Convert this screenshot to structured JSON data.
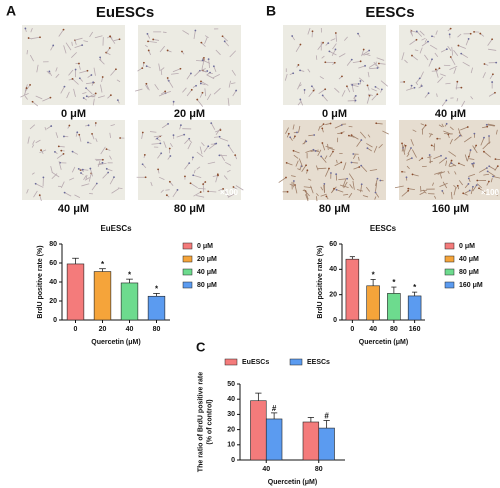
{
  "panels": [
    {
      "label": "A",
      "title": "EuESCs",
      "images": [
        "0 μM",
        "20 μM",
        "40 μM",
        "80 μM"
      ],
      "magnification": "×100"
    },
    {
      "label": "B",
      "title": "EESCs",
      "images": [
        "0 μM",
        "40 μM",
        "80 μM",
        "160 μM"
      ],
      "magnification": "×100"
    }
  ],
  "chart_data": [
    {
      "type": "bar",
      "title": "EuESCs",
      "categories": [
        "0",
        "20",
        "40",
        "80"
      ],
      "values": [
        59,
        51,
        39,
        25
      ],
      "errors": [
        6,
        3,
        4,
        3
      ],
      "markers": [
        null,
        "*",
        "*",
        "*"
      ],
      "colors": [
        "#f47b7b",
        "#f5a43a",
        "#6ddb8e",
        "#5b9bf0"
      ],
      "legend": [
        "0 μM",
        "20 μM",
        "40 μM",
        "80 μM"
      ],
      "ylabel": [
        "BrdU positive rate (%)"
      ],
      "xlabel": "Quercetin (μM)",
      "ylim": [
        0,
        80
      ],
      "yticks": [
        0,
        20,
        40,
        60,
        80
      ]
    },
    {
      "type": "bar",
      "title": "EESCs",
      "categories": [
        "0",
        "40",
        "80",
        "160"
      ],
      "values": [
        48,
        27,
        21,
        19
      ],
      "errors": [
        2,
        5,
        5,
        3
      ],
      "markers": [
        null,
        "*",
        "*",
        "*"
      ],
      "colors": [
        "#f47b7b",
        "#f5a43a",
        "#6ddb8e",
        "#5b9bf0"
      ],
      "legend": [
        "0 μM",
        "40 μM",
        "80 μM",
        "160 μM"
      ],
      "ylabel": [
        "BrdU positive rate (%)"
      ],
      "xlabel": "Quercetin (μM)",
      "ylim": [
        0,
        60
      ],
      "yticks": [
        0,
        20,
        40,
        60
      ]
    },
    {
      "type": "grouped-bar",
      "label": "C",
      "categories": [
        "40",
        "80"
      ],
      "series": [
        {
          "name": "EuESCs",
          "color": "#f47b7b",
          "values": [
            39,
            25
          ],
          "errors": [
            5,
            3
          ],
          "markers": [
            null,
            null
          ]
        },
        {
          "name": "EESCs",
          "color": "#5b9bf0",
          "values": [
            27,
            21
          ],
          "errors": [
            4,
            5
          ],
          "markers": [
            "#",
            "#"
          ]
        }
      ],
      "ylabel": [
        "The ratio of BrdU positive rate",
        "(% of control)"
      ],
      "xlabel": "Quercetin (μM)",
      "ylim": [
        0,
        50
      ],
      "yticks": [
        0,
        10,
        20,
        30,
        40,
        50
      ]
    }
  ]
}
